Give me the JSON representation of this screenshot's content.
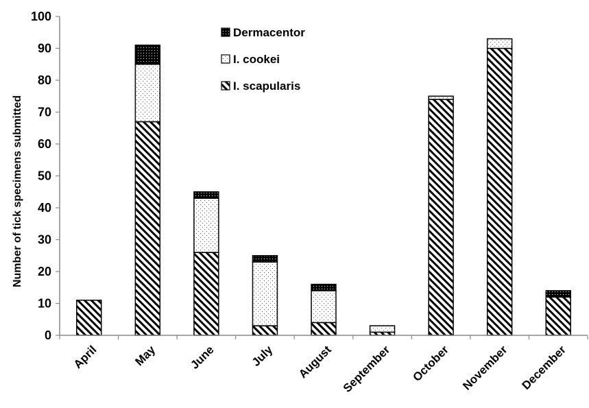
{
  "chart_data": {
    "type": "bar",
    "stacked": true,
    "categories": [
      "April",
      "May",
      "June",
      "July",
      "August",
      "September",
      "October",
      "November",
      "December"
    ],
    "series": [
      {
        "name": "I. scapularis",
        "values": [
          11,
          67,
          26,
          3,
          4,
          1,
          74,
          90,
          12
        ],
        "pattern": "diagonal-hatch"
      },
      {
        "name": "I. cookei",
        "values": [
          0,
          18,
          17,
          20,
          10,
          2,
          1,
          3,
          0
        ],
        "pattern": "dotted"
      },
      {
        "name": "Dermacentor",
        "values": [
          0,
          6,
          2,
          2,
          2,
          0,
          0,
          0,
          2
        ],
        "pattern": "dense-dark"
      }
    ],
    "legend_order": [
      "Dermacentor",
      "I. cookei",
      "I. scapularis"
    ],
    "legend_position": "top-center",
    "ylabel": "Number of tick specimens submitted",
    "xlabel": "",
    "ylim": [
      0,
      100
    ],
    "yticks": [
      0,
      10,
      20,
      30,
      40,
      50,
      60,
      70,
      80,
      90,
      100
    ],
    "grid": false
  }
}
